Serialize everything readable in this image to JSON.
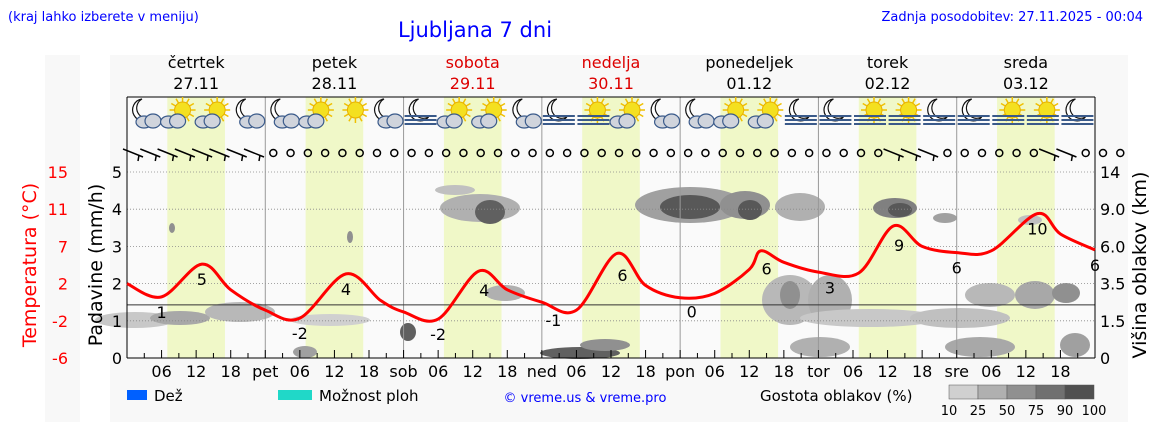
{
  "header": {
    "hint": "(kraj lahko izberete v meniju)",
    "title": "Ljubljana 7 dni",
    "updated": "Zadnja posodobitev: 27.11.2025 - 00:04"
  },
  "days": [
    {
      "name": "četrtek",
      "date": "27.11",
      "weekend": false
    },
    {
      "name": "petek",
      "date": "28.11",
      "weekend": false
    },
    {
      "name": "sobota",
      "date": "29.11",
      "weekend": true
    },
    {
      "name": "nedelja",
      "date": "30.11",
      "weekend": true
    },
    {
      "name": "ponedeljek",
      "date": "01.12",
      "weekend": false
    },
    {
      "name": "torek",
      "date": "02.12",
      "weekend": false
    },
    {
      "name": "sreda",
      "date": "03.12",
      "weekend": false
    }
  ],
  "colors": {
    "temperature": "#ff0000",
    "weekend": "#dd0000",
    "daylight": "#f0f8c8",
    "rain": "#0060ff",
    "showers": "#20d8c8",
    "title": "#0000ff"
  },
  "weather_icons": [
    "moon-cloud",
    "sun-cloud",
    "sun-cloud",
    "moon-cloud",
    "moon-cloud",
    "sun-cloud",
    "sun",
    "moon-cloud",
    "moon-fog",
    "sun-cloud",
    "sun-cloud",
    "moon-cloud",
    "moon-fog",
    "sun-fog",
    "sun-cloud",
    "moon-cloud",
    "moon-cloud",
    "sun-cloud",
    "sun-cloud",
    "moon-fog",
    "moon-fog",
    "sun-fog",
    "sun-fog",
    "moon-fog",
    "moon-fog",
    "sun-fog",
    "sun-fog",
    "moon-fog"
  ],
  "wind": [
    "barb",
    "barb",
    "barb",
    "barb",
    "barb",
    "barb",
    "barb",
    "barb",
    "calm",
    "calm",
    "calm",
    "calm",
    "calm",
    "calm",
    "calm",
    "calm",
    "calm",
    "calm",
    "calm",
    "calm",
    "calm",
    "calm",
    "calm",
    "calm",
    "calm",
    "calm",
    "calm",
    "calm",
    "calm",
    "calm",
    "calm",
    "calm",
    "calm",
    "calm",
    "calm",
    "calm",
    "calm",
    "calm",
    "calm",
    "calm",
    "calm",
    "calm",
    "calm",
    "calm",
    "barb",
    "barb",
    "barb",
    "calm",
    "calm",
    "calm",
    "calm",
    "calm",
    "calm",
    "barb",
    "barb",
    "calm",
    "calm",
    "calm"
  ],
  "chart_data": {
    "type": "line",
    "xlabel": "",
    "x_ticks": [
      "06",
      "12",
      "18",
      "pet",
      "06",
      "12",
      "18",
      "sob",
      "06",
      "12",
      "18",
      "ned",
      "06",
      "12",
      "18",
      "pon",
      "06",
      "12",
      "18",
      "tor",
      "06",
      "12",
      "18",
      "sre",
      "06",
      "12",
      "18"
    ],
    "y_left_temp": {
      "label": "Temperatura (°C)",
      "ticks": [
        "15",
        "11",
        "7",
        "2",
        "-2",
        "-6"
      ],
      "range": [
        -6,
        15
      ]
    },
    "y_left_precip": {
      "label": "Padavine (mm/h)",
      "ticks": [
        "5",
        "4",
        "3",
        "2",
        "1",
        "0"
      ],
      "range": [
        0,
        5
      ]
    },
    "y_right": {
      "label": "Višina oblakov (km)",
      "ticks": [
        "14",
        "9.0",
        "6.0",
        "3.5",
        "1.5",
        "0"
      ]
    },
    "grid": true,
    "series": [
      {
        "name": "Temperatura (°C)",
        "x_hours": [
          0,
          6,
          13,
          18,
          24,
          30,
          38,
          44,
          48,
          54,
          61,
          66,
          72,
          78,
          85,
          90,
          96,
          102,
          108,
          110,
          114,
          120,
          127,
          133,
          138,
          144,
          150,
          158,
          162,
          168
        ],
        "values": [
          2.4,
          0.9,
          4.6,
          1.7,
          -0.6,
          -1.5,
          3.5,
          0.5,
          -0.8,
          -1.6,
          3.8,
          1.7,
          0.3,
          -0.6,
          5.8,
          2.2,
          0.8,
          1.3,
          4.0,
          6.1,
          4.8,
          3.7,
          3.6,
          8.9,
          6.6,
          5.9,
          6.1,
          10.3,
          8.0,
          6.2
        ]
      }
    ],
    "annotations": [
      {
        "hour": 6,
        "text": "1"
      },
      {
        "hour": 13,
        "text": "5"
      },
      {
        "hour": 30,
        "text": "-2"
      },
      {
        "hour": 38,
        "text": "4"
      },
      {
        "hour": 54,
        "text": "-2"
      },
      {
        "hour": 62,
        "text": "4"
      },
      {
        "hour": 74,
        "text": "-1"
      },
      {
        "hour": 86,
        "text": "6"
      },
      {
        "hour": 98,
        "text": "0"
      },
      {
        "hour": 111,
        "text": "6"
      },
      {
        "hour": 122,
        "text": "3"
      },
      {
        "hour": 134,
        "text": "9"
      },
      {
        "hour": 144,
        "text": "6"
      },
      {
        "hour": 158,
        "text": "10"
      },
      {
        "hour": 168,
        "text": "6"
      }
    ],
    "freezing_level_temp": 0
  },
  "legend": {
    "rain": "Dež",
    "showers": "Možnost ploh",
    "credit": "© vreme.us & vreme.pro",
    "cloud_density": "Gostota oblakov (%)",
    "scale_labels": [
      "10",
      "25",
      "50",
      "75",
      "90",
      "100"
    ],
    "scale_colors": [
      "#d0d0d0",
      "#b0b0b0",
      "#909090",
      "#707070",
      "#505050"
    ]
  }
}
